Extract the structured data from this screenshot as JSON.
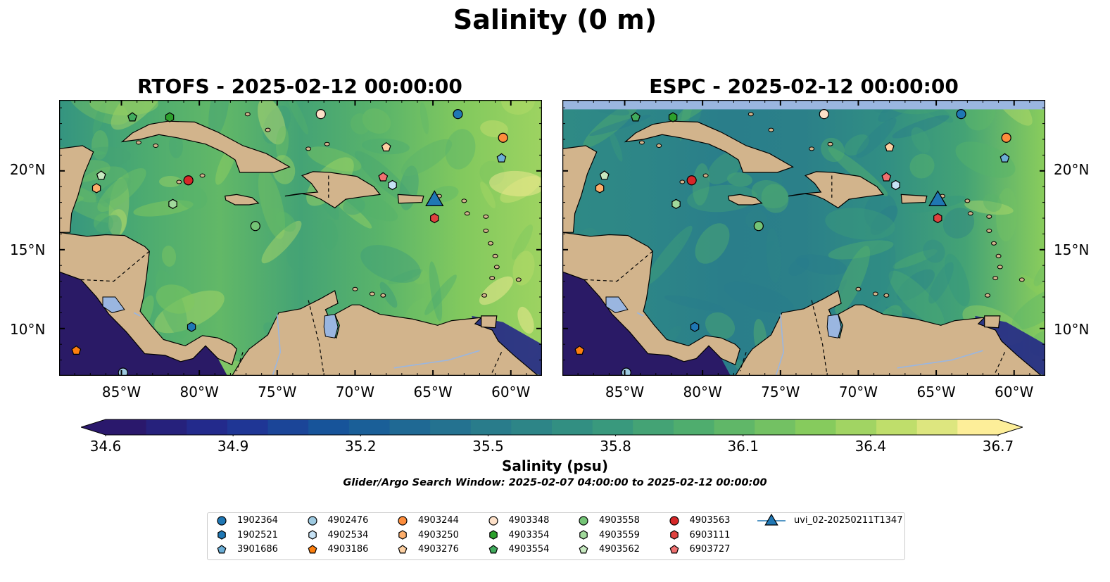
{
  "title": "Salinity (0 m)",
  "panels": [
    {
      "title": "RTOFS - 2025-02-12 00:00:00"
    },
    {
      "title": "ESPC - 2025-02-12 00:00:00"
    }
  ],
  "lat_ticks": [
    "20°N",
    "15°N",
    "10°N"
  ],
  "lon_ticks": [
    "85°W",
    "80°W",
    "75°W",
    "70°W",
    "65°W",
    "60°W"
  ],
  "map_extent": {
    "lon": [
      -89,
      -58
    ],
    "lat": [
      7,
      24.5
    ]
  },
  "colorbar": {
    "label": "Salinity (psu)",
    "range": [
      34.6,
      36.7
    ],
    "ticks": [
      "34.6",
      "34.9",
      "35.2",
      "35.5",
      "35.8",
      "36.1",
      "36.4",
      "36.7"
    ],
    "extend": "both",
    "colormap": "haline"
  },
  "search_window": "Glider/Argo Search Window: 2025-02-07 04:00:00 to 2025-02-12 00:00:00",
  "colors": {
    "land": "#d2b48c",
    "lake": "#9ab6e0",
    "espc_missing_band": "#9ab6e0",
    "pacific_low_salinity": "#2a1a66"
  },
  "legend": [
    {
      "id": "1902364",
      "marker": "circle",
      "color": "#1f77b4"
    },
    {
      "id": "1902521",
      "marker": "hexagon",
      "color": "#1f77b4"
    },
    {
      "id": "3901686",
      "marker": "pentagon",
      "color": "#6baed6"
    },
    {
      "id": "4902476",
      "marker": "circle",
      "color": "#9ecae1"
    },
    {
      "id": "4902534",
      "marker": "hexagon",
      "color": "#c6e2f5"
    },
    {
      "id": "4903186",
      "marker": "pentagon",
      "color": "#fd7f0e"
    },
    {
      "id": "4903244",
      "marker": "circle",
      "color": "#fd8d3c"
    },
    {
      "id": "4903250",
      "marker": "hexagon",
      "color": "#fdae6b"
    },
    {
      "id": "4903276",
      "marker": "pentagon",
      "color": "#fdd0a2"
    },
    {
      "id": "4903348",
      "marker": "circle",
      "color": "#fde0c8"
    },
    {
      "id": "4903354",
      "marker": "hexagon",
      "color": "#2ca02c"
    },
    {
      "id": "4903554",
      "marker": "pentagon",
      "color": "#41ab5d"
    },
    {
      "id": "4903558",
      "marker": "circle",
      "color": "#74c476"
    },
    {
      "id": "4903559",
      "marker": "hexagon",
      "color": "#a1d99b"
    },
    {
      "id": "4903562",
      "marker": "pentagon",
      "color": "#c7e9c0"
    },
    {
      "id": "4903563",
      "marker": "circle",
      "color": "#d62728"
    },
    {
      "id": "6903111",
      "marker": "hexagon",
      "color": "#e0423f"
    },
    {
      "id": "6903727",
      "marker": "pentagon",
      "color": "#f07070"
    },
    {
      "id": "uvi_02-20250211T1347",
      "marker": "triangle",
      "color": "#1f77b4"
    }
  ],
  "observations": [
    {
      "id": "1902364",
      "lon": -63.4,
      "lat": 23.6
    },
    {
      "id": "1902521",
      "lon": -80.5,
      "lat": 10.1
    },
    {
      "id": "3901686",
      "lon": -60.6,
      "lat": 20.8
    },
    {
      "id": "4902476",
      "lon": -84.9,
      "lat": 7.2
    },
    {
      "id": "4902534",
      "lon": -67.6,
      "lat": 19.1
    },
    {
      "id": "4903186",
      "lon": -87.9,
      "lat": 8.6
    },
    {
      "id": "4903244",
      "lon": -60.5,
      "lat": 22.1
    },
    {
      "id": "4903250",
      "lon": -86.6,
      "lat": 18.9
    },
    {
      "id": "4903276",
      "lon": -68.0,
      "lat": 21.5
    },
    {
      "id": "4903348",
      "lon": -72.2,
      "lat": 23.6
    },
    {
      "id": "4903354",
      "lon": -81.9,
      "lat": 23.4
    },
    {
      "id": "4903554",
      "lon": -84.3,
      "lat": 23.4
    },
    {
      "id": "4903558",
      "lon": -76.4,
      "lat": 16.5
    },
    {
      "id": "4903559",
      "lon": -81.7,
      "lat": 17.9
    },
    {
      "id": "4903562",
      "lon": -86.3,
      "lat": 19.7
    },
    {
      "id": "4903563",
      "lon": -80.7,
      "lat": 19.4
    },
    {
      "id": "6903111",
      "lon": -64.9,
      "lat": 17.0
    },
    {
      "id": "6903727",
      "lon": -68.2,
      "lat": 19.6
    },
    {
      "id": "uvi_02-20250211T1347",
      "lon": -64.9,
      "lat": 18.1
    }
  ]
}
